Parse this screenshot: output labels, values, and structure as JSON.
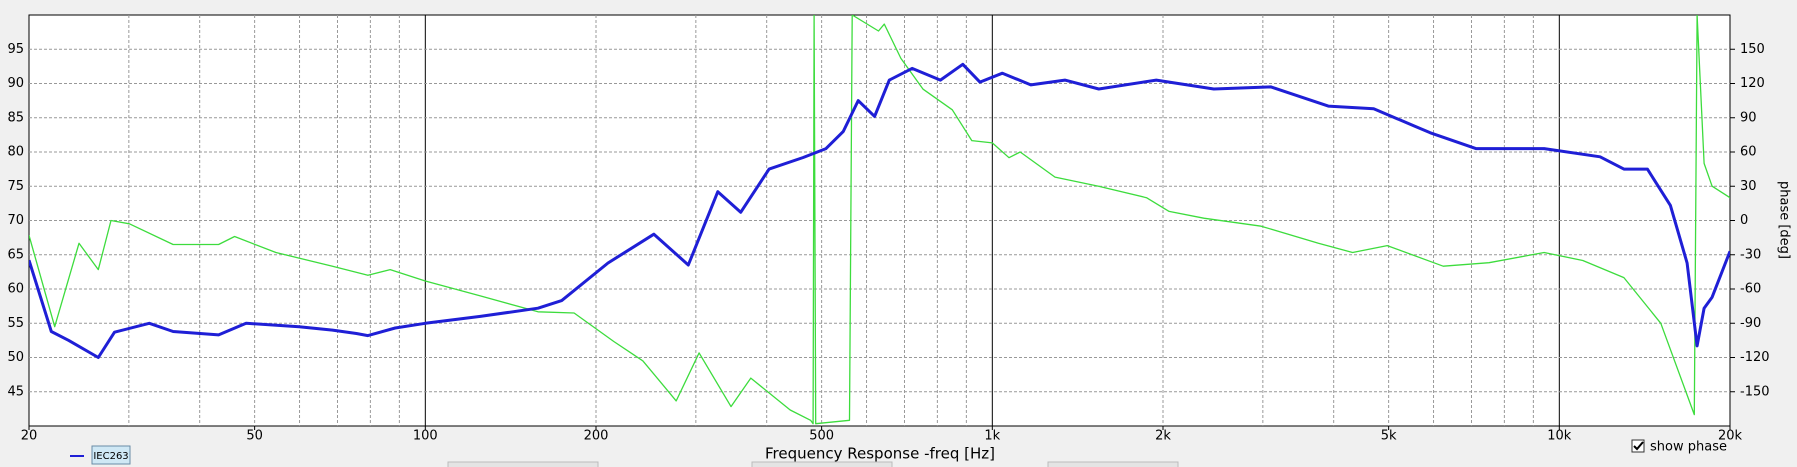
{
  "chart_data": {
    "type": "line",
    "xlabel": "Frequency Response -freq [Hz]",
    "y2label": "phase [deg]",
    "xscale": "log",
    "xlim": [
      20,
      20000
    ],
    "xticks": [
      20,
      50,
      100,
      200,
      500,
      {
        "value": 1000,
        "label": "1k"
      },
      {
        "value": 2000,
        "label": "2k"
      },
      {
        "value": 5000,
        "label": "5k"
      },
      {
        "value": 10000,
        "label": "10k"
      },
      {
        "value": 20000,
        "label": "20k"
      }
    ],
    "ylim": [
      40,
      100
    ],
    "yticks": [
      45,
      50,
      55,
      60,
      65,
      70,
      75,
      80,
      85,
      90,
      95
    ],
    "y2lim": [
      -180,
      180
    ],
    "y2ticks": [
      -150,
      -120,
      -90,
      -60,
      -30,
      0,
      30,
      60,
      90,
      120,
      150
    ],
    "grid": true,
    "legend_position": "bottom-left",
    "show_phase_label": "show phase",
    "show_phase": true,
    "series": [
      {
        "name": "IEC263",
        "color": "#1f1fd6",
        "axis": "y",
        "x": [
          20,
          21.9,
          23.5,
          26.5,
          28.3,
          32.6,
          35.9,
          43.2,
          48.3,
          59.9,
          68.6,
          75.6,
          79.2,
          88.5,
          100,
          125,
          158,
          174,
          210,
          253,
          291,
          328,
          360,
          404,
          464,
          509,
          546,
          580,
          620,
          658,
          722,
          810,
          887,
          951,
          1042,
          1169,
          1343,
          1541,
          1946,
          2458,
          3101,
          3914,
          4706,
          5923,
          7126,
          9405,
          11800,
          13000,
          14300,
          15700,
          16800,
          17500,
          18000,
          18600,
          20000
        ],
        "values": [
          64.2,
          53.8,
          52.5,
          50,
          53.7,
          55,
          53.8,
          53.3,
          55,
          54.5,
          54,
          53.5,
          53.2,
          54.3,
          55,
          56,
          57.2,
          58.3,
          63.8,
          68,
          63.5,
          74.2,
          71.2,
          77.5,
          79.2,
          80.5,
          83,
          87.5,
          85.2,
          90.5,
          92.2,
          90.5,
          92.8,
          90.2,
          91.5,
          89.8,
          90.5,
          89.2,
          90.5,
          89.2,
          89.5,
          86.7,
          86.3,
          82.8,
          80.5,
          80.5,
          79.3,
          77.5,
          77.5,
          72.2,
          63.8,
          51.7,
          57.2,
          58.8,
          65.5
        ]
      },
      {
        "color": "#3ddc3d",
        "axis": "y2",
        "x": [
          20,
          22.2,
          24.5,
          26.5,
          27.9,
          30.1,
          35.9,
          43.2,
          46.1,
          54.5,
          68.6,
          79.2,
          86.7,
          100,
          125,
          158,
          183,
          215,
          242,
          277,
          304,
          346,
          375,
          440,
          478,
          483,
          485,
          488,
          560,
          566,
          630,
          645,
          690,
          755,
          850,
          920,
          1000,
          1070,
          1120,
          1290,
          1540,
          1870,
          2050,
          2360,
          2980,
          3760,
          4320,
          4970,
          6240,
          7520,
          9400,
          11000,
          13000,
          15100,
          17300,
          17500,
          18000,
          18600,
          20000
        ],
        "values": [
          -13,
          -93,
          -20,
          -43,
          0,
          -3,
          -21,
          -21,
          -14,
          -28,
          -40,
          -48,
          -43,
          -53,
          -66,
          -80,
          -81,
          -106,
          -123,
          -158,
          -116,
          -163,
          -138,
          -166,
          -175,
          -178,
          180,
          -178,
          -175,
          180,
          166,
          172,
          142,
          115,
          97,
          70,
          68,
          55,
          60,
          38,
          30,
          20,
          8,
          2,
          -5,
          -20,
          -28,
          -22,
          -40,
          -37,
          -28,
          -35,
          -50,
          -90,
          -170,
          180,
          50,
          30,
          20
        ]
      }
    ]
  }
}
